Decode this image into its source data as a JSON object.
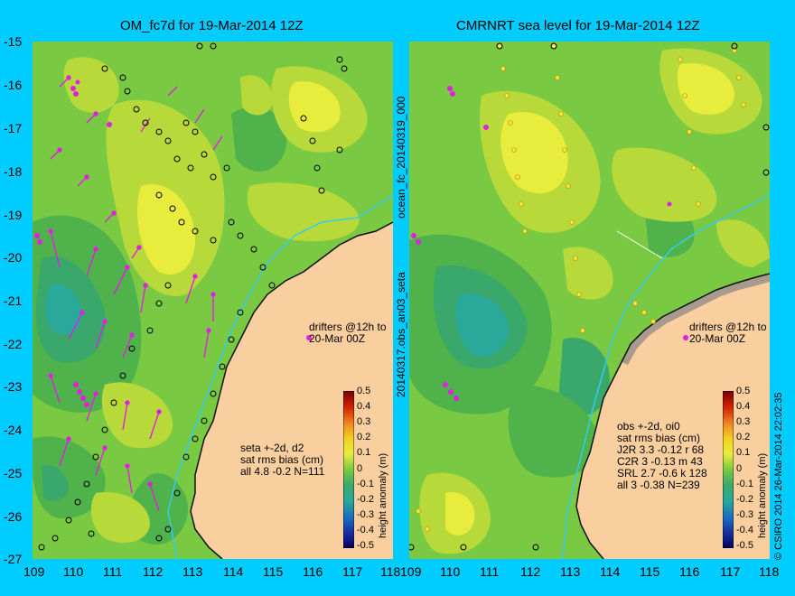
{
  "left_panel": {
    "title": "OM_fc7d for 19-Mar-2014 12Z",
    "drifters_label": [
      "drifters @12h to",
      "20-Mar 00Z"
    ],
    "stats": [
      "seta +-2d, d2",
      "sat rms bias (cm)",
      "all 4.8 -0.2 N=111"
    ],
    "side_label_top": "ocean_fc_20140319_000",
    "side_label_bottom": "20140317.obs_an03_seta",
    "x_ticks": [
      "109",
      "110",
      "111",
      "112",
      "113",
      "114",
      "115",
      "116",
      "117",
      "118"
    ],
    "y_ticks": [
      "-15",
      "-16",
      "-17",
      "-18",
      "-19",
      "-20",
      "-21",
      "-22",
      "-23",
      "-24",
      "-25",
      "-26",
      "-27"
    ],
    "colorbar_ticks": [
      "0.5",
      "0.4",
      "0.3",
      "0.2",
      "0.1",
      "0",
      "-0.1",
      "-0.2",
      "-0.3",
      "-0.4",
      "-0.5"
    ],
    "colorbar_label": "height anomaly (m)"
  },
  "right_panel": {
    "title": "CMRNRT sea level  for 19-Mar-2014 12Z",
    "drifters_label": [
      "drifters @12h to",
      "20-Mar 00Z"
    ],
    "stats": [
      "obs +-2d, oi0",
      "sat rms bias (cm)",
      "J2R   3.3 -0.12 r 68",
      "C2R    3 -0.13 m 43",
      "SRL    2.7 -0.6 k 128",
      "all   3 -0.38 N=239"
    ],
    "x_ticks": [
      "109",
      "110",
      "111",
      "112",
      "113",
      "114",
      "115",
      "116",
      "117",
      "118"
    ],
    "colorbar_ticks": [
      "0.5",
      "0.4",
      "0.3",
      "0.2",
      "0.1",
      "0",
      "-0.1",
      "-0.2",
      "-0.3",
      "-0.4",
      "-0.5"
    ],
    "colorbar_label": "height anomaly (m)",
    "copyright": "© CSIRO 2014  26-Mar-2014 22:02:35"
  },
  "colors": {
    "background": "#00ccff",
    "land": "#f9cfa0",
    "field_base": "#7ac943",
    "field_high": "#e8ec3c",
    "field_low": "#3aa86b",
    "field_lowest": "#2aa899",
    "drifter": "#e020e0",
    "coast_contour": "#33ccee"
  }
}
